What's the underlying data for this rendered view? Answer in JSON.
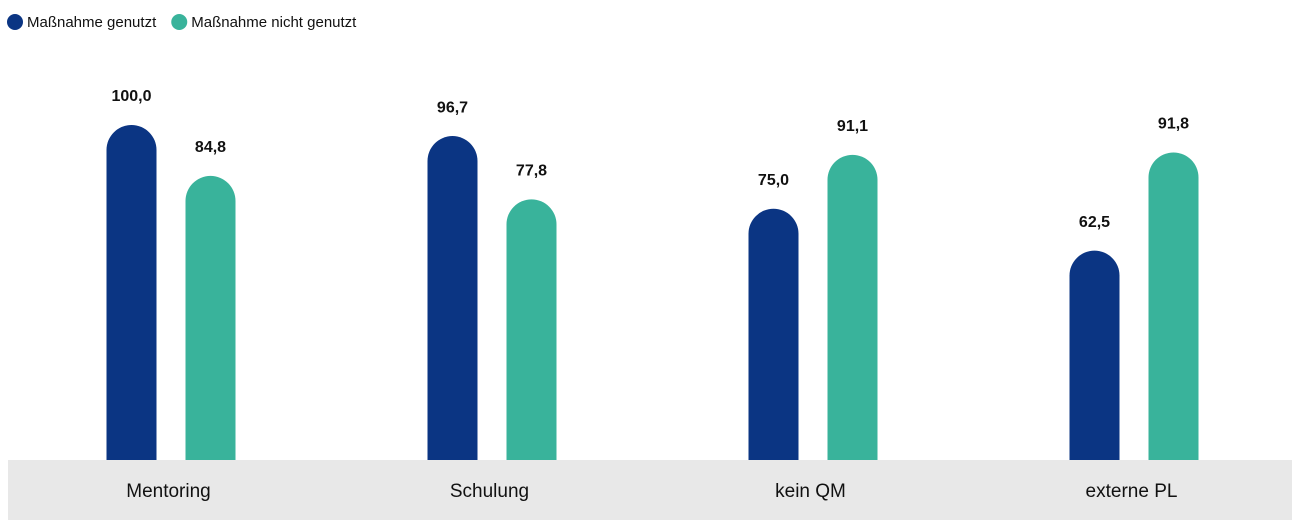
{
  "chart_data": {
    "type": "bar",
    "categories": [
      "Mentoring",
      "Schulung",
      "kein QM",
      "externe PL"
    ],
    "series": [
      {
        "name": "Maßnahme genutzt",
        "color": "#0b3583",
        "values": [
          100,
          96.7,
          75,
          62.5
        ],
        "value_labels": [
          "100,0",
          "96,7",
          "75,0",
          "62,5"
        ]
      },
      {
        "name": "Maßnahme nicht genutzt",
        "color": "#39b39b",
        "values": [
          84.8,
          77.8,
          91.1,
          91.8
        ],
        "value_labels": [
          "84,8",
          "77,8",
          "91,1",
          "91,8"
        ]
      }
    ]
  }
}
